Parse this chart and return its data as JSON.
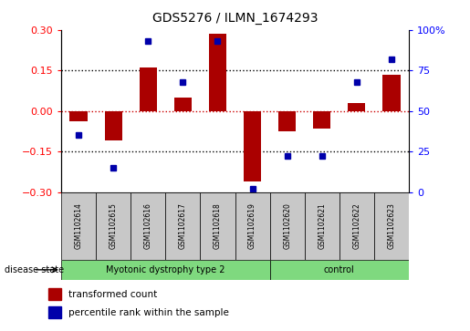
{
  "title": "GDS5276 / ILMN_1674293",
  "samples": [
    "GSM1102614",
    "GSM1102615",
    "GSM1102616",
    "GSM1102617",
    "GSM1102618",
    "GSM1102619",
    "GSM1102620",
    "GSM1102621",
    "GSM1102622",
    "GSM1102623"
  ],
  "transformed_count": [
    -0.04,
    -0.11,
    0.16,
    0.05,
    0.285,
    -0.26,
    -0.075,
    -0.065,
    0.03,
    0.135
  ],
  "percentile_rank": [
    35,
    15,
    93,
    68,
    93,
    2,
    22,
    22,
    68,
    82
  ],
  "disease_groups": [
    {
      "label": "Myotonic dystrophy type 2",
      "start": 0,
      "end": 6,
      "color": "#7FD97F"
    },
    {
      "label": "control",
      "start": 6,
      "end": 10,
      "color": "#7FD97F"
    }
  ],
  "ylim_left": [
    -0.3,
    0.3
  ],
  "ylim_right": [
    0,
    100
  ],
  "yticks_left": [
    -0.3,
    -0.15,
    0,
    0.15,
    0.3
  ],
  "yticks_right": [
    0,
    25,
    50,
    75,
    100
  ],
  "bar_color": "#AA0000",
  "dot_color": "#0000AA",
  "hline_color": "#CC0000",
  "grid_color": "black",
  "bg_plot": "white",
  "bg_sample": "#C8C8C8",
  "legend_items": [
    "transformed count",
    "percentile rank within the sample"
  ],
  "legend_colors": [
    "#AA0000",
    "#0000AA"
  ]
}
